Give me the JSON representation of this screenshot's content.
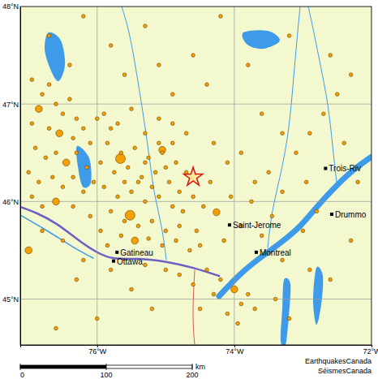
{
  "chart_data": {
    "type": "scatter",
    "xlim": [
      -77.12,
      -72.0
    ],
    "ylim": [
      44.53,
      48.0
    ],
    "xticks": [
      {
        "value": -76,
        "label": "76°W"
      },
      {
        "value": -74,
        "label": "74°W"
      },
      {
        "value": -72,
        "label": "72°W"
      }
    ],
    "yticks": [
      {
        "value": 45,
        "label": "45°N"
      },
      {
        "value": 46,
        "label": "46°N"
      },
      {
        "value": 47,
        "label": "47°N"
      },
      {
        "value": 48,
        "label": "48°N"
      }
    ],
    "grid": true,
    "color": "#f5a000",
    "marker": "circle",
    "x": [
      -76.95,
      -76.8,
      -76.7,
      -76.6,
      -76.85,
      -76.5,
      -76.4,
      -76.3,
      -76.95,
      -76.7,
      -76.55,
      -76.35,
      -76.2,
      -76.1,
      -76.9,
      -76.75,
      -76.6,
      -76.45,
      -76.3,
      -76.15,
      -77.0,
      -76.85,
      -76.65,
      -76.5,
      -76.35,
      -76.2,
      -76.05,
      -76.95,
      -76.8,
      -76.6,
      -75.9,
      -75.7,
      -75.5,
      -75.3,
      -75.1,
      -74.9,
      -75.85,
      -75.65,
      -75.45,
      -75.25,
      -75.05,
      -74.85,
      -74.7,
      -75.95,
      -75.75,
      -75.55,
      -75.35,
      -75.15,
      -74.95,
      -74.8,
      -75.9,
      -75.7,
      -75.5,
      -75.3,
      -75.1,
      -74.9,
      -74.75,
      -75.8,
      -75.66,
      -75.05,
      -75.52,
      -74.26,
      -75.6,
      -75.4,
      -75.2,
      -75.0,
      -74.8,
      -75.65,
      -75.45,
      -75.25,
      -75.05,
      -74.85,
      -74.65,
      -74.5,
      -74.4,
      -74.2,
      -74.0,
      -73.9,
      -74.1,
      -73.8,
      -74.3,
      -73.7,
      -74.5,
      -73.95,
      -74.6,
      -74.8,
      -75.0,
      -75.3,
      -75.8,
      -76.2,
      -76.5,
      -76.8,
      -77.0,
      -76.3,
      -75.5,
      -75.2,
      -76.0,
      -76.6,
      -74.3,
      -74.1,
      -73.9,
      -73.7,
      -73.5,
      -73.3,
      -73.1,
      -72.9,
      -72.7,
      -72.5,
      -72.4,
      -72.2,
      -72.8,
      -73.0,
      -73.3,
      -72.6,
      -72.3,
      -73.4,
      -73.2,
      -72.9,
      -75.8,
      -75.3,
      -74.6,
      -74.2,
      -73.8,
      -73.2,
      -72.6,
      -76.7,
      -76.2,
      -74.9,
      -74.4,
      -73.6,
      -73.3,
      -72.3,
      -76.4,
      -75.6,
      -75.1,
      -75.4,
      -75.2,
      -75.0,
      -75.6,
      -75.3,
      -75.1,
      -74.9,
      -74.7,
      -75.8,
      -76.0,
      -75.85,
      -75.95,
      -76.1,
      -76.35,
      -74.55,
      -74.45,
      -74.6,
      -74.35,
      -74.15,
      -73.9,
      -73.6,
      -73.75,
      -74.05,
      -73.45,
      -72.95
    ],
    "values": [
      47.25,
      47.1,
      47.2,
      47.0,
      46.95,
      46.9,
      47.05,
      46.85,
      46.8,
      46.75,
      46.7,
      46.65,
      46.75,
      46.6,
      46.55,
      46.45,
      46.5,
      46.4,
      46.5,
      46.35,
      46.3,
      46.2,
      46.25,
      46.15,
      46.25,
      46.1,
      46.2,
      46.05,
      45.95,
      46.0,
      46.9,
      46.8,
      46.95,
      46.7,
      46.85,
      46.6,
      46.6,
      46.5,
      46.55,
      46.45,
      46.5,
      46.4,
      46.3,
      46.4,
      46.3,
      46.35,
      46.25,
      46.3,
      46.2,
      46.1,
      46.15,
      46.05,
      46.1,
      46.0,
      46.05,
      45.95,
      45.9,
      45.9,
      46.44,
      46.53,
      45.86,
      45.89,
      45.8,
      45.75,
      45.8,
      45.7,
      45.75,
      45.65,
      45.6,
      45.62,
      45.55,
      45.6,
      45.5,
      45.55,
      45.3,
      45.2,
      45.1,
      44.95,
      44.85,
      45.05,
      45.05,
      44.9,
      44.9,
      44.75,
      45.15,
      45.25,
      45.3,
      45.35,
      45.3,
      45.4,
      45.6,
      45.7,
      45.5,
      45.2,
      45.1,
      44.9,
      44.8,
      44.7,
      46.6,
      46.4,
      46.5,
      46.2,
      46.3,
      46.1,
      46.5,
      46.7,
      46.9,
      47.1,
      46.6,
      46.2,
      45.9,
      45.7,
      45.4,
      45.2,
      45.6,
      45.0,
      44.8,
      45.3,
      47.6,
      47.8,
      47.5,
      47.9,
      47.4,
      47.7,
      47.5,
      47.7,
      47.9,
      47.1,
      47.2,
      46.9,
      46.7,
      47.3,
      47.4,
      47.3,
      47.4,
      46.2,
      46.15,
      46.35,
      46.2,
      46.4,
      46.6,
      46.8,
      46.7,
      46.75,
      46.85,
      45.55,
      45.7,
      45.85,
      45.95,
      45.7,
      45.95,
      46.05,
      46.2,
      45.6,
      45.75,
      45.65,
      46.0,
      46.05,
      45.85,
      46.2
    ],
    "sizes": [
      2,
      2,
      2,
      2,
      3,
      2,
      2,
      2,
      2,
      2,
      3,
      2,
      2,
      2,
      2,
      2,
      2,
      3,
      2,
      2,
      2,
      2,
      2,
      2,
      2,
      2,
      2,
      2,
      2,
      3,
      2,
      2,
      2,
      2,
      2,
      2,
      2,
      2,
      2,
      2,
      2,
      2,
      2,
      2,
      2,
      2,
      2,
      2,
      2,
      2,
      2,
      2,
      2,
      2,
      2,
      2,
      2,
      2,
      4,
      3,
      4,
      3,
      2,
      2,
      2,
      2,
      2,
      2,
      3,
      2,
      2,
      2,
      2,
      2,
      2,
      2,
      3,
      2,
      2,
      2,
      2,
      2,
      2,
      2,
      2,
      2,
      2,
      2,
      2,
      2,
      2,
      2,
      3,
      2,
      2,
      2,
      2,
      2,
      2,
      2,
      2,
      2,
      2,
      2,
      2,
      2,
      2,
      2,
      2,
      2,
      2,
      2,
      2,
      2,
      2,
      2,
      2,
      2,
      2,
      2,
      2,
      2,
      2,
      2,
      2,
      2,
      2,
      2,
      2,
      2,
      2,
      2,
      2,
      2,
      2,
      2,
      2,
      2,
      2,
      2,
      2,
      2,
      2,
      2,
      2,
      2,
      2,
      2,
      2,
      2,
      2,
      2,
      2,
      2,
      2,
      2,
      2,
      2,
      2,
      2
    ],
    "epicentre": {
      "lon": -74.6,
      "lat": 46.25
    },
    "places": [
      {
        "name": "Gatineau",
        "lon": -75.71,
        "lat": 45.48
      },
      {
        "name": "Ottawa",
        "lon": -75.76,
        "lat": 45.39
      },
      {
        "name": "Saint-Jerome",
        "lon": -74.07,
        "lat": 45.76
      },
      {
        "name": "Montreal",
        "lon": -73.68,
        "lat": 45.48
      },
      {
        "name": "Trois-Riv",
        "lon": -72.67,
        "lat": 46.34
      },
      {
        "name": "Drummo",
        "lon": -72.58,
        "lat": 45.87
      }
    ],
    "scale_bar": {
      "ticks": [
        0,
        100,
        200
      ],
      "unit": "km"
    },
    "credits": [
      "EarthquakesCanada",
      "SéismesCanada"
    ]
  }
}
